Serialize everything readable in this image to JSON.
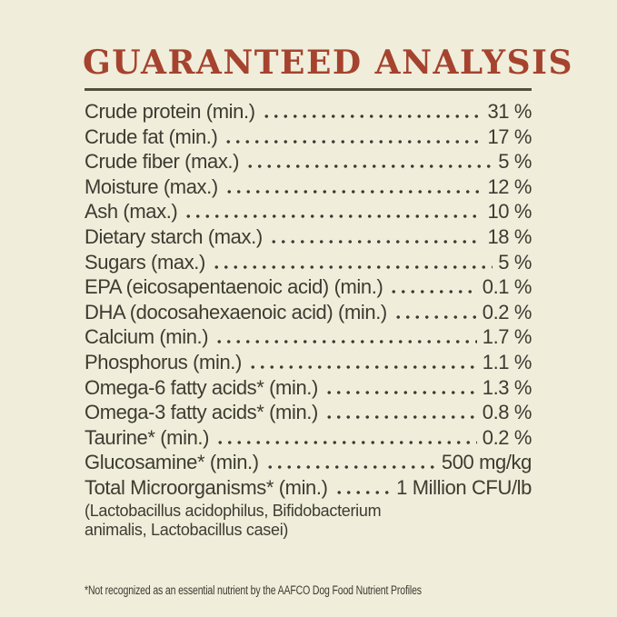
{
  "page": {
    "colors": {
      "background": "#f0eddb",
      "accent": "#a5432e",
      "rule": "#514f3d",
      "ink": "#3d3c31"
    },
    "title": "GUARANTEED ANALYSIS"
  },
  "analysis": {
    "rows": [
      {
        "label": "Crude protein (min.)",
        "value": "31 %"
      },
      {
        "label": "Crude fat (min.)",
        "value": "17 %"
      },
      {
        "label": "Crude fiber (max.)",
        "value": "5 %"
      },
      {
        "label": "Moisture (max.)",
        "value": "12 %"
      },
      {
        "label": "Ash (max.)",
        "value": "10 %"
      },
      {
        "label": "Dietary starch (max.)",
        "value": "18 %"
      },
      {
        "label": "Sugars (max.)",
        "value": "5 %"
      },
      {
        "label": "EPA (eicosapentaenoic acid) (min.)",
        "value": "0.1 %"
      },
      {
        "label": "DHA (docosahexaenoic acid) (min.)",
        "value": "0.2 %"
      },
      {
        "label": "Calcium (min.)",
        "value": "1.7 %"
      },
      {
        "label": "Phosphorus (min.)",
        "value": "1.1 %"
      },
      {
        "label": "Omega-6 fatty acids* (min.)",
        "value": "1.3 %"
      },
      {
        "label": "Omega-3 fatty acids* (min.)",
        "value": "0.8 %"
      },
      {
        "label": "Taurine* (min.)",
        "value": "0.2 %"
      },
      {
        "label": "Glucosamine* (min.)",
        "value": "500 mg/kg"
      },
      {
        "label": "Total Microorganisms* (min.)",
        "value": "1 Million CFU/lb"
      }
    ],
    "microorganisms_note": "(Lactobacillus acidophilus, Bifidobacterium animalis, Lactobacillus casei)",
    "footnote": "*Not recognized as an essential nutrient by the AAFCO Dog Food Nutrient Profiles"
  }
}
